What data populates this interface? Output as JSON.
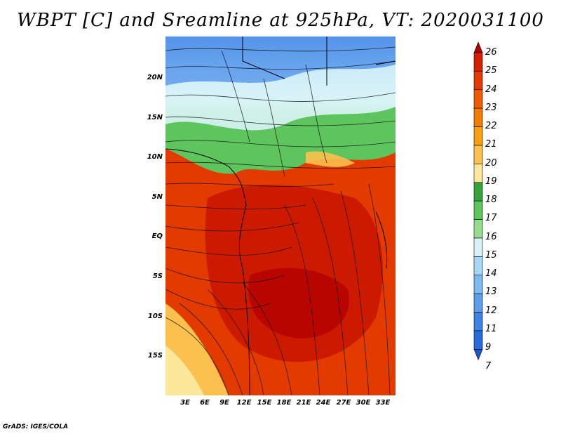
{
  "title": "WBPT [C] and Sreamline at 925hPa, VT: 2020031100",
  "credit": "GrADS: IGES/COLA",
  "lat_labels": [
    "20N",
    "15N",
    "10N",
    "5N",
    "EQ",
    "5S",
    "10S",
    "15S"
  ],
  "lon_labels": [
    "3E",
    "6E",
    "9E",
    "12E",
    "15E",
    "18E",
    "21E",
    "24E",
    "27E",
    "30E",
    "33E"
  ],
  "colorbar": {
    "labels": [
      "26",
      "25",
      "24",
      "23",
      "22",
      "21",
      "20",
      "19",
      "18",
      "17",
      "16",
      "15",
      "14",
      "13",
      "12",
      "11",
      "9",
      "7"
    ],
    "colors": [
      "#b40000",
      "#d22000",
      "#e33a00",
      "#ef5a00",
      "#f47c00",
      "#f99f10",
      "#fbc04e",
      "#fde79b",
      "#36a336",
      "#5ec55e",
      "#96dc8e",
      "#d8f3f8",
      "#a8d6f6",
      "#7fb9f2",
      "#5e9cec",
      "#3f82e6",
      "#2a6bdc",
      "#1f55cc"
    ]
  }
}
